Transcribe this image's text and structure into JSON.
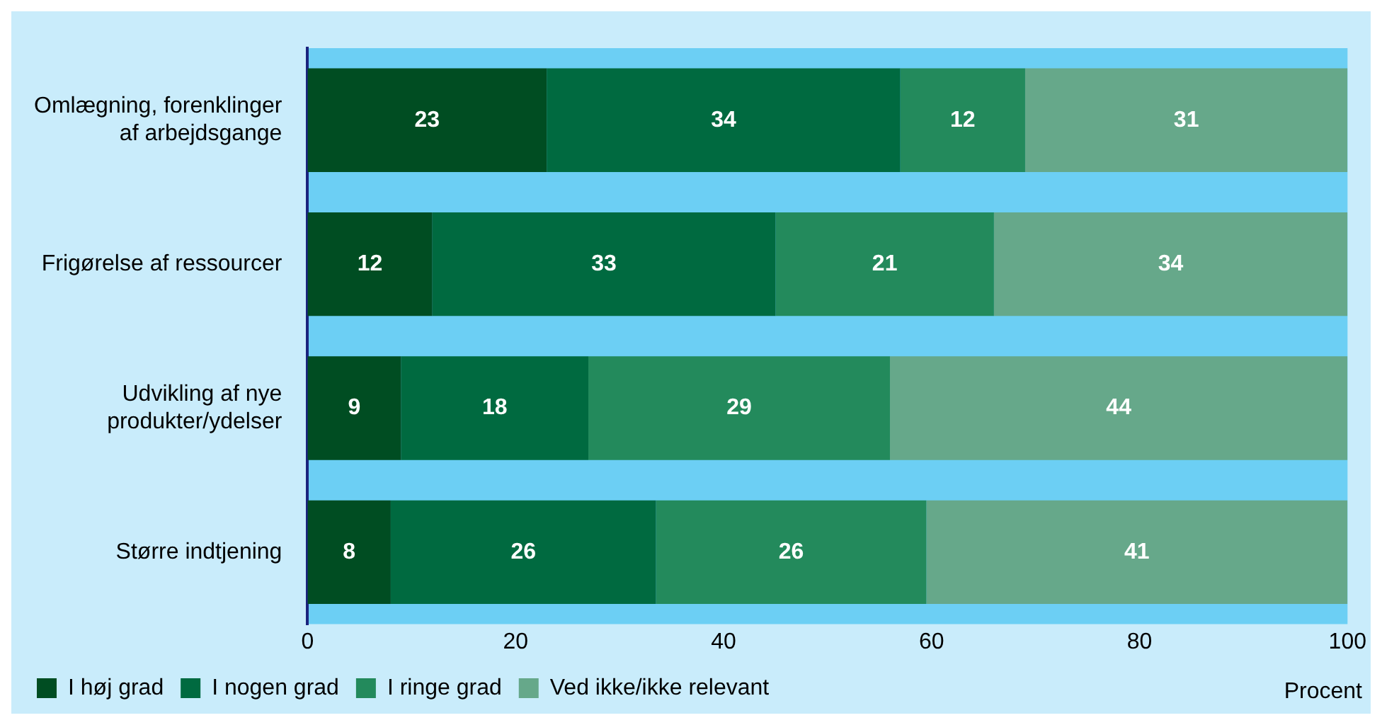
{
  "chart_data": {
    "type": "bar",
    "orientation": "horizontal",
    "stacked": true,
    "categories": [
      "Omlægning, forenklinger af arbejdsgange",
      "Frigørelse af ressourcer",
      "Udvikling af nye produkter/ydelser",
      "Større indtjening"
    ],
    "series": [
      {
        "name": "I høj grad",
        "color": "#004d22",
        "values": [
          23,
          12,
          9,
          8
        ],
        "value_labels": [
          "23",
          "12",
          "9",
          "8"
        ]
      },
      {
        "name": "I nogen grad",
        "color": "#006a40",
        "values": [
          34,
          33,
          18,
          25.5
        ],
        "value_labels": [
          "34",
          "33",
          "18",
          "26"
        ]
      },
      {
        "name": "I ringe grad",
        "color": "#238a5c",
        "values": [
          12,
          21,
          29,
          26
        ],
        "value_labels": [
          "12",
          "21",
          "29",
          "26"
        ]
      },
      {
        "name": "Ved ikke/ikke relevant",
        "color": "#66a88a",
        "values": [
          31,
          34,
          44,
          40.5
        ],
        "value_labels": [
          "31",
          "34",
          "44",
          "41"
        ]
      }
    ],
    "xlim": [
      0,
      100
    ],
    "xticks": [
      0,
      20,
      40,
      60,
      80,
      100
    ],
    "xlabel": "Procent",
    "legend": "bottom left",
    "grid": false
  }
}
